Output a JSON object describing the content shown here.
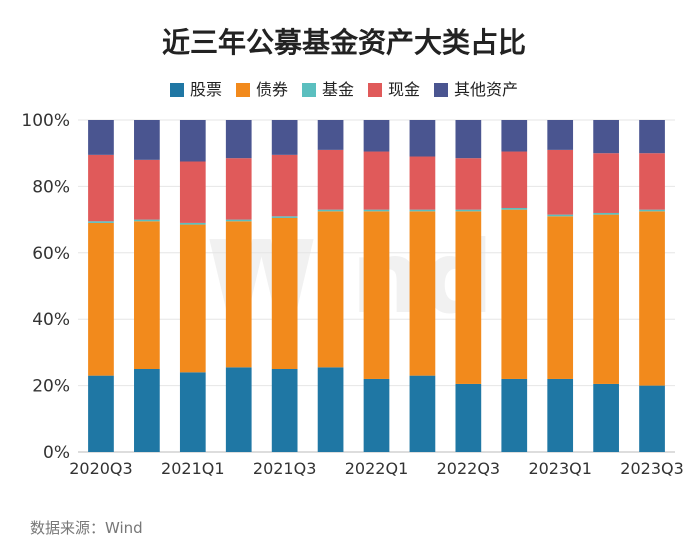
{
  "chart_data": {
    "type": "bar",
    "stacked": true,
    "title": "近三年公募基金资产大类占比",
    "categories": [
      "2020Q3",
      "2020Q4",
      "2021Q1",
      "2021Q2",
      "2021Q3",
      "2021Q4",
      "2022Q1",
      "2022Q2",
      "2022Q3",
      "2022Q4",
      "2023Q1",
      "2023Q2",
      "2023Q3"
    ],
    "x_tick_labels": [
      "2020Q3",
      "2021Q1",
      "2021Q3",
      "2022Q1",
      "2022Q3",
      "2023Q1",
      "2023Q3"
    ],
    "y_tick_labels": [
      "0%",
      "20%",
      "40%",
      "60%",
      "80%",
      "100%"
    ],
    "ylim": [
      0,
      100
    ],
    "grid": true,
    "legend_position": "top",
    "series": [
      {
        "name": "股票",
        "color": "#1f77a4",
        "values": [
          23,
          25,
          24,
          25.5,
          25,
          25.5,
          22,
          23,
          20.5,
          22,
          22,
          20.5,
          20
        ]
      },
      {
        "name": "债券",
        "color": "#f28a1c",
        "values": [
          46,
          44.5,
          44.5,
          44,
          45.5,
          47,
          50.5,
          49.5,
          52,
          51,
          49,
          51,
          52.5
        ]
      },
      {
        "name": "基金",
        "color": "#5bbfbf",
        "values": [
          0.5,
          0.5,
          0.5,
          0.5,
          0.5,
          0.5,
          0.5,
          0.5,
          0.5,
          0.5,
          0.5,
          0.5,
          0.5
        ]
      },
      {
        "name": "现金",
        "color": "#e05a5a",
        "values": [
          20,
          18,
          18.5,
          18.5,
          18.5,
          18,
          17.5,
          16,
          15.5,
          17,
          19.5,
          18,
          17
        ]
      },
      {
        "name": "其他资产",
        "color": "#4a5590",
        "values": [
          10.5,
          12,
          12.5,
          11.5,
          10.5,
          9,
          9.5,
          11,
          11.5,
          9.5,
          9,
          10,
          10
        ]
      }
    ]
  },
  "source_text": "数据来源：Wind",
  "watermark_text": "Wind"
}
